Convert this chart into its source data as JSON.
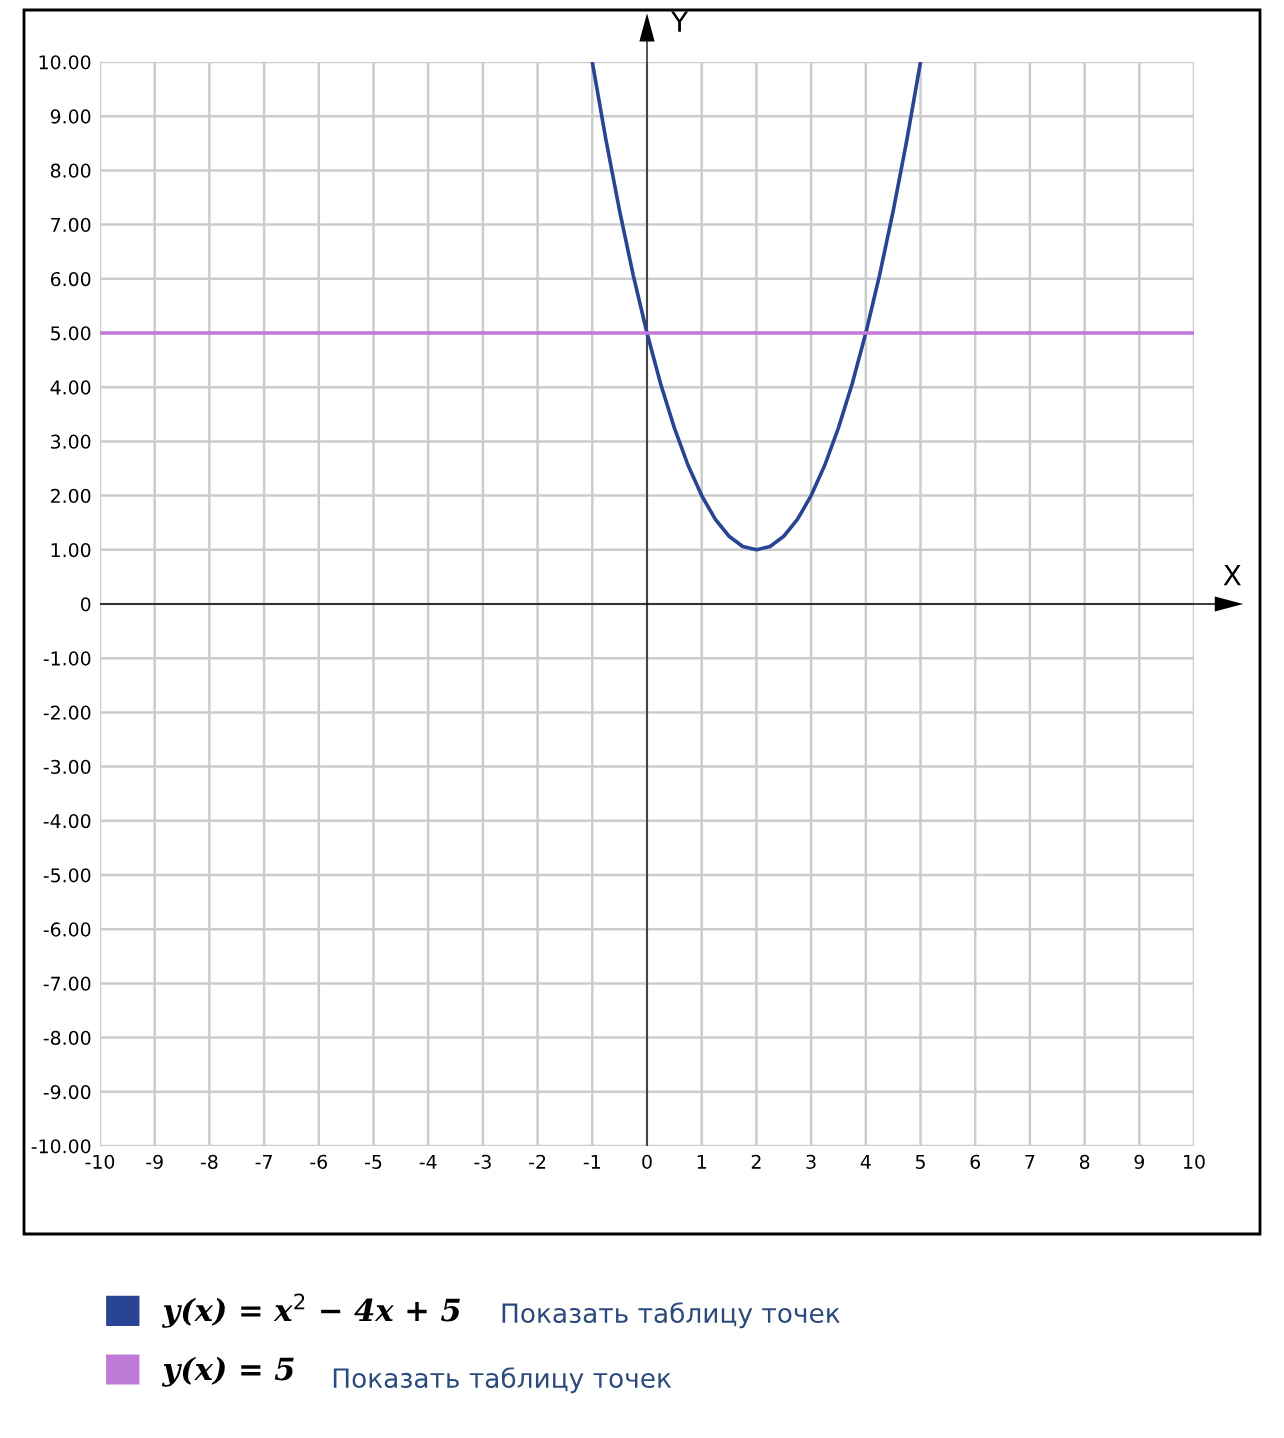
{
  "chart_data": {
    "type": "line",
    "xlabel": "X",
    "ylabel": "Y",
    "xlim": [
      -10,
      10
    ],
    "ylim": [
      -10,
      10
    ],
    "xticks": [
      -10,
      -9,
      -8,
      -7,
      -6,
      -5,
      -4,
      -3,
      -2,
      -1,
      0,
      1,
      2,
      3,
      4,
      5,
      6,
      7,
      8,
      9,
      10
    ],
    "yticks": [
      {
        "value": 10,
        "label": "10.00"
      },
      {
        "value": 9,
        "label": "9.00"
      },
      {
        "value": 8,
        "label": "8.00"
      },
      {
        "value": 7,
        "label": "7.00"
      },
      {
        "value": 6,
        "label": "6.00"
      },
      {
        "value": 5,
        "label": "5.00"
      },
      {
        "value": 4,
        "label": "4.00"
      },
      {
        "value": 3,
        "label": "3.00"
      },
      {
        "value": 2,
        "label": "2.00"
      },
      {
        "value": 1,
        "label": "1.00"
      },
      0,
      {
        "value": -1,
        "label": "-1.00"
      },
      {
        "value": -2,
        "label": "-2.00"
      },
      {
        "value": -3,
        "label": "-3.00"
      },
      {
        "value": -4,
        "label": "-4.00"
      },
      {
        "value": -5,
        "label": "-5.00"
      },
      {
        "value": -6,
        "label": "-6.00"
      },
      {
        "value": -7,
        "label": "-7.00"
      },
      {
        "value": -8,
        "label": "-8.00"
      },
      {
        "value": -9,
        "label": "-9.00"
      },
      {
        "value": -10,
        "label": "-10.00"
      }
    ],
    "grid": true,
    "legend": "bottom left",
    "marker": "none",
    "line_style": "solid",
    "series": [
      {
        "name": "y(x) = x$^{2}$ − 4x + 5",
        "color": "#2a4494",
        "x": [
          -1,
          -0.75,
          -0.5,
          -0.25,
          0,
          0.25,
          0.5,
          0.75,
          1,
          1.25,
          1.5,
          1.75,
          2,
          2.25,
          2.5,
          2.75,
          3,
          3.25,
          3.5,
          3.75,
          4,
          4.25,
          4.5,
          4.75,
          5
        ],
        "values": [
          10,
          8.56,
          7.25,
          6.06,
          5,
          4.06,
          3.25,
          2.56,
          2,
          1.56,
          1.25,
          1.06,
          1,
          1.06,
          1.25,
          1.56,
          2,
          2.56,
          3.25,
          4.06,
          5,
          6.06,
          7.25,
          8.56,
          10
        ]
      },
      {
        "name": "y(x) = 5",
        "color": "#c07ad8",
        "x": [
          -10,
          10
        ],
        "values": [
          5,
          5
        ]
      }
    ],
    "annotations": [
      "Показать таблицу точек",
      "Показать таблицу точек"
    ]
  }
}
